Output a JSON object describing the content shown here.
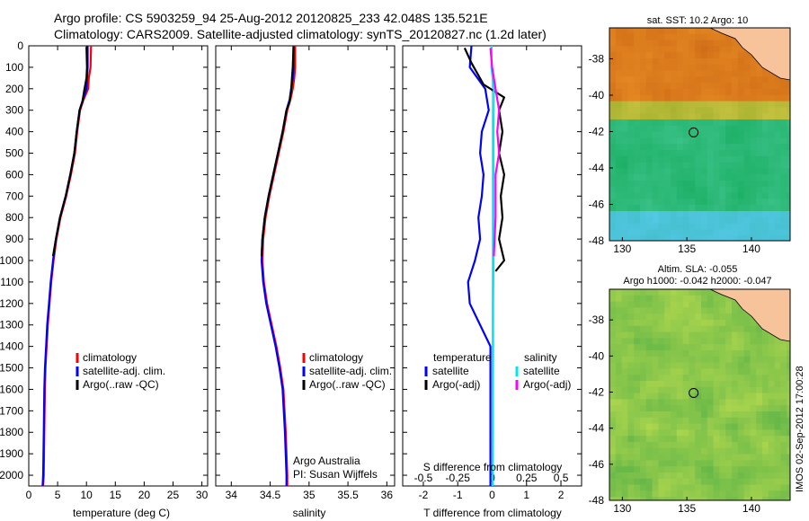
{
  "header": {
    "line1": "Argo profile: CS 5903259_94 25-Aug-2012 20120825_233 42.048S 135.521E",
    "line2": "Climatology: CARS2009. Satellite-adjusted climatology: synTS_20120827.nc (1.2d later)"
  },
  "colors": {
    "climatology": "#ff0000",
    "satellite": "#0000ff",
    "argo": "#000000",
    "sal_satellite": "#00e5ee",
    "sal_argo": "#ff00ff",
    "land": "#f7c39a"
  },
  "credit": {
    "institution": "Argo Australia",
    "pi": "PI: Susan Wijffels",
    "stamp": "IMOS 02-Sep-2012 17:00:28"
  },
  "chart_data": [
    {
      "type": "line",
      "xlabel": "temperature (deg C)",
      "ylabel": "",
      "xlim": [
        0,
        31
      ],
      "ylim": [
        2050,
        0
      ],
      "xticks": [
        0,
        5,
        10,
        15,
        20,
        25,
        30
      ],
      "yticks": [
        0,
        100,
        200,
        300,
        400,
        500,
        600,
        700,
        800,
        900,
        1000,
        1100,
        1200,
        1300,
        1400,
        1500,
        1600,
        1700,
        1800,
        1900,
        2000
      ],
      "legend": [
        "climatology",
        "satellite-adj. clim.",
        "Argo(..raw -QC)"
      ],
      "series": [
        {
          "name": "climatology",
          "x": [
            10.8,
            10.7,
            10.4,
            10.3,
            9.5,
            8.9,
            8.4,
            8.0,
            7.3,
            6.5,
            5.5,
            4.8,
            4.3,
            3.9,
            3.6,
            3.3,
            3.1,
            2.9,
            2.8,
            2.7,
            2.6,
            2.5
          ],
          "y": [
            0,
            100,
            150,
            200,
            250,
            300,
            400,
            500,
            600,
            700,
            800,
            900,
            1000,
            1100,
            1200,
            1300,
            1400,
            1500,
            1600,
            1800,
            2000,
            2050
          ]
        },
        {
          "name": "satellite-adj. clim.",
          "x": [
            10.2,
            10.2,
            10.1,
            10.0,
            9.4,
            8.8,
            8.3,
            7.9,
            7.2,
            6.4,
            5.4,
            4.7,
            4.2,
            3.8,
            3.5,
            3.2,
            3.0,
            2.8,
            2.7,
            2.6,
            2.5,
            2.4
          ],
          "y": [
            0,
            100,
            150,
            200,
            250,
            300,
            400,
            500,
            600,
            700,
            800,
            900,
            1000,
            1100,
            1200,
            1300,
            1400,
            1500,
            1600,
            1800,
            2000,
            2050
          ]
        },
        {
          "name": "Argo(..raw -QC)",
          "x": [
            10.0,
            10.1,
            10.0,
            9.6,
            9.3,
            8.8,
            8.3,
            7.9,
            7.2,
            6.4,
            5.4,
            4.7,
            4.2
          ],
          "y": [
            5,
            100,
            150,
            210,
            260,
            300,
            400,
            500,
            600,
            700,
            800,
            900,
            980
          ]
        }
      ]
    },
    {
      "type": "line",
      "xlabel": "salinity",
      "ylabel": "",
      "xlim": [
        33.8,
        36.1
      ],
      "ylim": [
        2050,
        0
      ],
      "xticks": [
        34,
        34.5,
        35,
        35.5,
        36
      ],
      "legend": [
        "climatology",
        "satellite-adj. clim.",
        "Argo(..raw -QC)"
      ],
      "series": [
        {
          "name": "climatology",
          "x": [
            34.82,
            34.82,
            34.81,
            34.79,
            34.76,
            34.72,
            34.67,
            34.61,
            34.55,
            34.49,
            34.44,
            34.41,
            34.4,
            34.42,
            34.46,
            34.52,
            34.58,
            34.63,
            34.67,
            34.7,
            34.72,
            34.72
          ],
          "y": [
            0,
            100,
            150,
            200,
            250,
            300,
            400,
            500,
            600,
            700,
            800,
            900,
            1000,
            1100,
            1200,
            1300,
            1400,
            1500,
            1600,
            1800,
            2000,
            2050
          ]
        },
        {
          "name": "satellite-adj. clim.",
          "x": [
            34.8,
            34.8,
            34.79,
            34.77,
            34.75,
            34.71,
            34.66,
            34.6,
            34.54,
            34.48,
            34.43,
            34.4,
            34.39,
            34.41,
            34.45,
            34.51,
            34.57,
            34.62,
            34.66,
            34.69,
            34.71,
            34.71
          ],
          "y": [
            0,
            100,
            150,
            200,
            250,
            300,
            400,
            500,
            600,
            700,
            800,
            900,
            1000,
            1100,
            1200,
            1300,
            1400,
            1500,
            1600,
            1800,
            2000,
            2050
          ]
        },
        {
          "name": "Argo(..raw -QC)",
          "x": [
            34.8,
            34.79,
            34.78,
            34.77,
            34.75,
            34.71,
            34.66,
            34.6,
            34.54,
            34.48,
            34.43,
            34.4,
            34.39
          ],
          "y": [
            5,
            100,
            150,
            210,
            260,
            300,
            400,
            500,
            600,
            700,
            800,
            900,
            980
          ]
        }
      ]
    },
    {
      "type": "line",
      "xlabel": "T difference from climatology",
      "xlabel_top": "S difference from climatology",
      "ylabel": "",
      "xlim": [
        -2.6,
        2.6
      ],
      "ylim": [
        2050,
        0
      ],
      "xticks": [
        -2,
        -1,
        0,
        1,
        2
      ],
      "xtick_labels_top": [
        "-0.5",
        "-0.25",
        "0",
        "0.25",
        "0.5"
      ],
      "legend_title_left": "temperature",
      "legend_title_right": "salinity",
      "legend": [
        "satellite",
        "Argo(-adj)",
        "satellite",
        "Argo(-adj)"
      ],
      "series": [
        {
          "name": "temperature satellite",
          "x": [
            -0.6,
            -0.65,
            -0.2,
            -0.1,
            -0.3,
            -0.35,
            -0.25,
            -0.3,
            -0.4,
            -0.35,
            -0.5,
            -0.7,
            -0.65,
            -0.05,
            -0.05,
            -0.05,
            -0.05
          ],
          "y": [
            0,
            100,
            200,
            300,
            400,
            500,
            600,
            700,
            800,
            900,
            1000,
            1100,
            1200,
            1400,
            1600,
            1800,
            2050
          ]
        },
        {
          "name": "temperature Argo(-adj)",
          "x": [
            -0.8,
            -0.6,
            -0.25,
            0.35,
            0.2,
            0.3,
            0.2,
            0.35,
            0.25,
            0.3,
            0.2,
            0.35,
            0.1
          ],
          "y": [
            10,
            80,
            180,
            240,
            300,
            400,
            500,
            600,
            700,
            800,
            900,
            1000,
            1050
          ]
        },
        {
          "name": "salinity satellite",
          "x": [
            -0.02,
            -0.02,
            0.05,
            0.04,
            0.04,
            0.04,
            0.04,
            0.03,
            0.03,
            0.02,
            0.02,
            0.01,
            0.01
          ],
          "y": [
            0,
            100,
            200,
            400,
            600,
            800,
            1000,
            1200,
            1400,
            1600,
            1800,
            2000,
            2050
          ]
        },
        {
          "name": "salinity Argo(-adj)",
          "x": [
            -0.05,
            0.0,
            0.1,
            0.2,
            0.15,
            0.2,
            0.1,
            0.1,
            0.05
          ],
          "y": [
            10,
            100,
            200,
            300,
            400,
            500,
            600,
            800,
            980
          ]
        }
      ]
    },
    {
      "type": "heatmap",
      "title": "sat. SST: 10.2 Argo: 10",
      "xlim": [
        129,
        143
      ],
      "ylim": [
        -48,
        -36.3
      ],
      "xticks": [
        130,
        135,
        140
      ],
      "yticks": [
        -38,
        -40,
        -42,
        -44,
        -46,
        -48
      ],
      "marker": {
        "x": 135.521,
        "y": -42.048
      }
    },
    {
      "type": "heatmap",
      "title": "Altim. SLA: -0.055",
      "subtitle": "Argo h1000: -0.042 h2000: -0.047",
      "xlim": [
        129,
        143
      ],
      "ylim": [
        -48,
        -36.3
      ],
      "xticks": [
        130,
        135,
        140
      ],
      "yticks": [
        -38,
        -40,
        -42,
        -44,
        -46,
        -48
      ],
      "marker": {
        "x": 135.521,
        "y": -42.048
      }
    }
  ]
}
